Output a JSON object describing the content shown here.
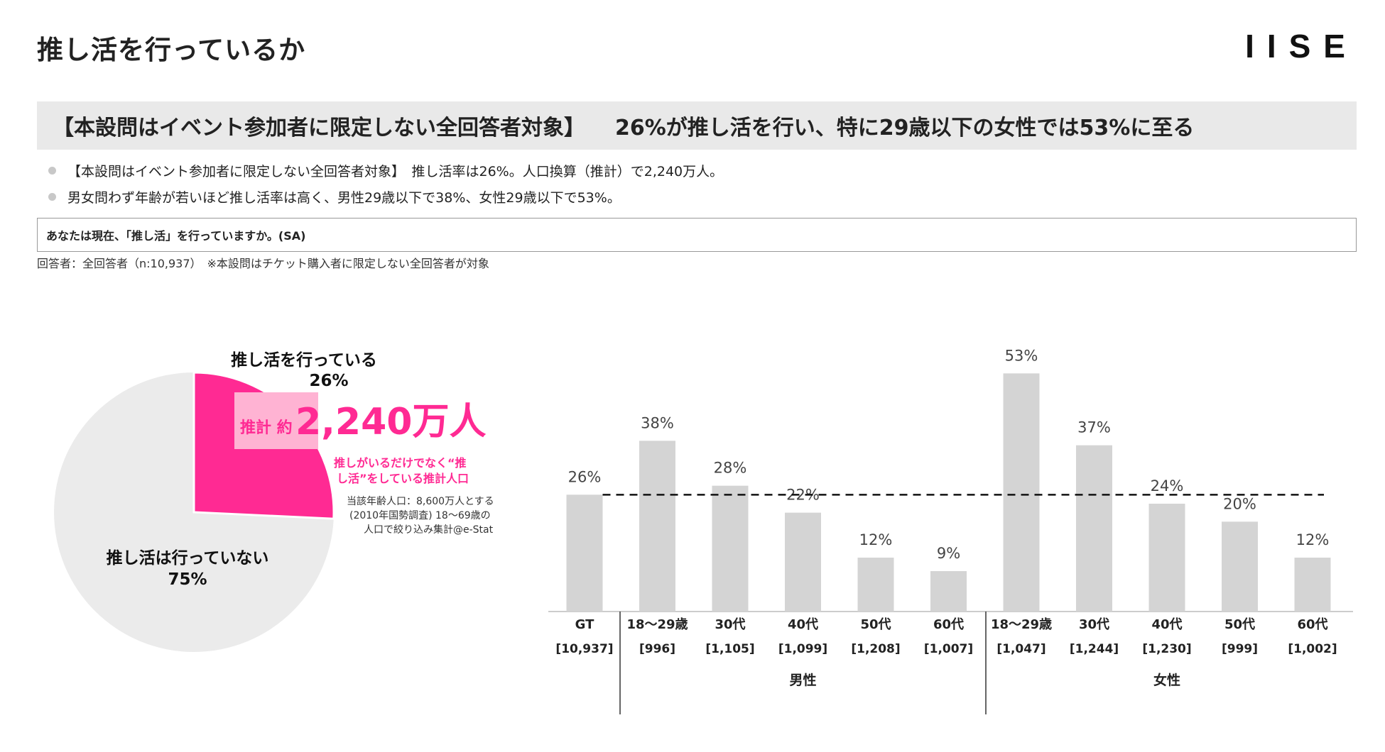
{
  "header": {
    "title": "推し活を行っているか",
    "logo": "IISE"
  },
  "headline": {
    "left": "【本設問はイベント参加者に限定しない全回答者対象】",
    "right": "26%が推し活を行い、特に29歳以下の女性では53%に至る"
  },
  "bullets": [
    "【本設問はイベント参加者に限定しない全回答者対象】　推し活率は26%。人口換算（推計）で2,240万人。",
    "男女問わず年齢が若いほど推し活率は高く、男性29歳以下で38%、女性29歳以下で53%。"
  ],
  "question": "あなたは現在、「推し活」を行っていますか。(SA)",
  "respondents": "回答者：全回答者（n:10,937）　※本設問はチケット購入者に限定しない全回答者が対象",
  "colors": {
    "accent": "#ff2a93",
    "accent_light": "#ffb3d3",
    "bar": "#d4d4d4",
    "pie_rest": "#ebebeb"
  },
  "chart_data": [
    {
      "type": "pie",
      "slices": [
        {
          "label": "推し活を行っている",
          "pct_label": "26%",
          "value": 26
        },
        {
          "label": "推し活は行っていない",
          "pct_label": "75%",
          "value": 75
        }
      ],
      "callout": {
        "prefix": "推計 約",
        "big": "2,240万人",
        "note_line1": "推しがいるだけでなく“推",
        "note_line2": "し活”をしている推計人口",
        "source_line1": "当該年齢人口：8,600万人とする",
        "source_line2": "(2010年国勢調査) 18〜69歳の",
        "source_line3": "人口で絞り込み集計@e-Stat"
      }
    },
    {
      "type": "bar",
      "reference_value": 26,
      "ylim": [
        0,
        60
      ],
      "bars": [
        {
          "label": "GT",
          "n": "[10,937]",
          "value": 26,
          "value_label": "26%"
        },
        {
          "label": "18〜29歳",
          "n": "[996]",
          "value": 38,
          "value_label": "38%"
        },
        {
          "label": "30代",
          "n": "[1,105]",
          "value": 28,
          "value_label": "28%"
        },
        {
          "label": "40代",
          "n": "[1,099]",
          "value": 22,
          "value_label": "22%"
        },
        {
          "label": "50代",
          "n": "[1,208]",
          "value": 12,
          "value_label": "12%"
        },
        {
          "label": "60代",
          "n": "[1,007]",
          "value": 9,
          "value_label": "9%"
        },
        {
          "label": "18〜29歳",
          "n": "[1,047]",
          "value": 53,
          "value_label": "53%"
        },
        {
          "label": "30代",
          "n": "[1,244]",
          "value": 37,
          "value_label": "37%"
        },
        {
          "label": "40代",
          "n": "[1,230]",
          "value": 24,
          "value_label": "24%"
        },
        {
          "label": "50代",
          "n": "[999]",
          "value": 20,
          "value_label": "20%"
        },
        {
          "label": "60代",
          "n": "[1,002]",
          "value": 12,
          "value_label": "12%"
        }
      ],
      "groups": [
        {
          "label": "男性",
          "first": 1,
          "last": 5
        },
        {
          "label": "女性",
          "first": 6,
          "last": 10
        }
      ]
    }
  ]
}
